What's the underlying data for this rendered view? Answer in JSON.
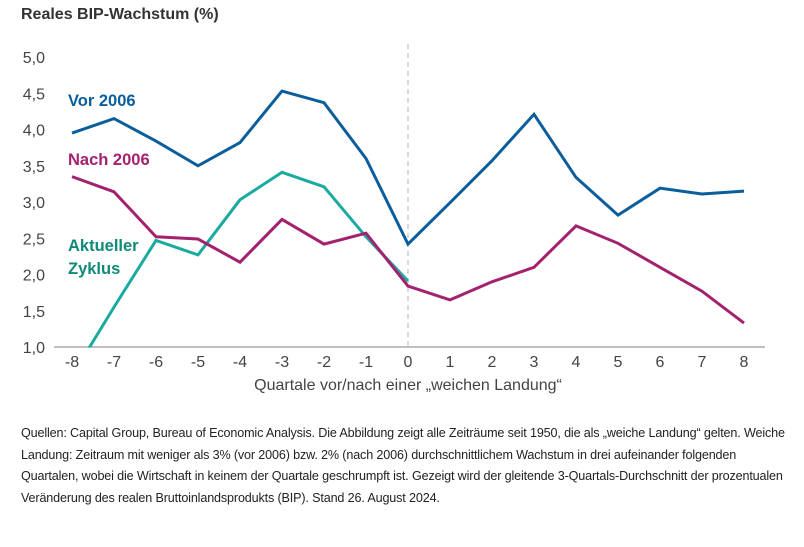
{
  "chart_data": {
    "type": "line",
    "title": "Reales BIP-Wachstum (%)",
    "xlabel": "Quartale vor/nach einer „weichen Landung“",
    "ylabel": "",
    "x": [
      -8,
      -7,
      -6,
      -5,
      -4,
      -3,
      -2,
      -1,
      0,
      1,
      2,
      3,
      4,
      5,
      6,
      7,
      8
    ],
    "x_tick_labels": [
      "-8",
      "-7",
      "-6",
      "-5",
      "-4",
      "-3",
      "-2",
      "-1",
      "0",
      "1",
      "2",
      "3",
      "4",
      "5",
      "6",
      "7",
      "8"
    ],
    "ylim": [
      1.0,
      5.0
    ],
    "y_ticks": [
      1.0,
      1.5,
      2.0,
      2.5,
      3.0,
      3.5,
      4.0,
      4.5,
      5.0
    ],
    "y_tick_labels": [
      "1,0",
      "1,5",
      "2,0",
      "2,5",
      "3,0",
      "3,5",
      "4,0",
      "4,5",
      "5,0"
    ],
    "grid": false,
    "reference_line": {
      "x": 0,
      "style": "dashed"
    },
    "series": [
      {
        "name": "Vor 2006",
        "color": "#0b5e9c",
        "values": [
          3.95,
          4.15,
          3.84,
          3.5,
          3.82,
          4.53,
          4.37,
          3.6,
          2.42,
          2.99,
          3.57,
          4.21,
          3.34,
          2.82,
          3.19,
          3.11,
          3.15
        ]
      },
      {
        "name": "Nach 2006",
        "color": "#a3226e",
        "values": [
          3.35,
          3.14,
          2.52,
          2.49,
          2.17,
          2.76,
          2.42,
          2.57,
          1.84,
          1.65,
          1.9,
          2.1,
          2.67,
          2.43,
          2.1,
          1.77,
          1.33
        ]
      },
      {
        "name": "Aktueller Zyklus",
        "label_lines": [
          "Aktueller",
          "Zyklus"
        ],
        "color": "#1aaaa0",
        "label_color": "#108a78",
        "values": [
          0.6,
          1.55,
          2.47,
          2.27,
          3.03,
          3.41,
          3.21,
          2.52,
          1.91,
          null,
          null,
          null,
          null,
          null,
          null,
          null,
          null
        ]
      }
    ],
    "legend": "inline-left"
  },
  "footnote": "Quellen: Capital Group, Bureau of Economic Analysis. Die Abbildung zeigt alle Zeiträume seit 1950, die als „weiche Landung“ gelten. Weiche Landung: Zeitraum mit weniger als 3% (vor 2006) bzw. 2% (nach 2006) durchschnittlichem Wachstum in drei aufeinander folgenden Quartalen, wobei die Wirtschaft in keinem der Quartale geschrumpft ist. Gezeigt wird der gleitende 3-Quartals-Durchschnitt der prozentualen Veränderung des realen Bruttoinlandsprodukts (BIP). Stand 26. August 2024."
}
